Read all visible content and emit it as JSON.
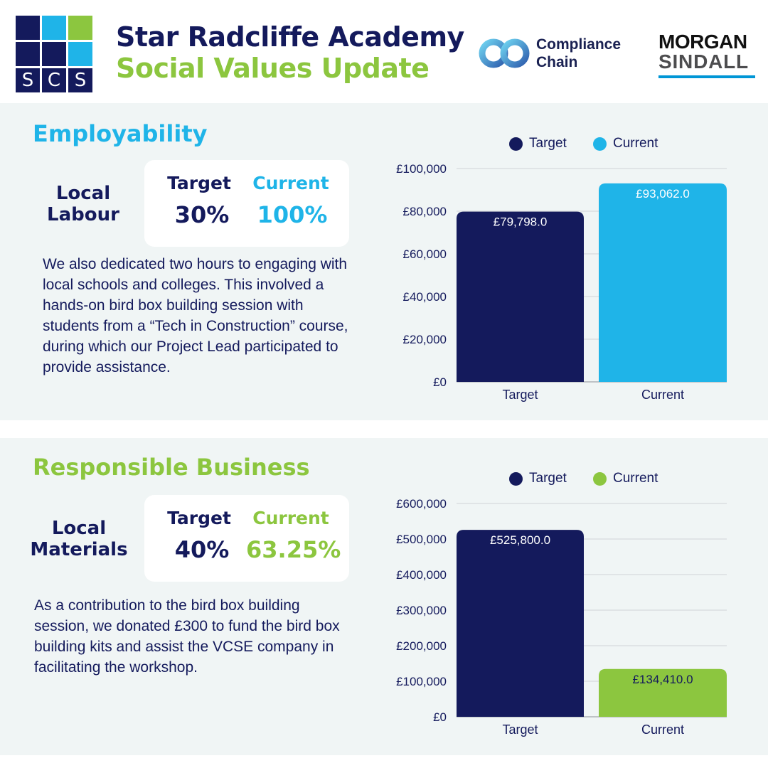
{
  "header": {
    "logo_letters": [
      "S",
      "C",
      "S"
    ],
    "title_line1": "Star Radcliffe Academy",
    "title_line2": "Social Values Update",
    "partner1_line1": "Compliance",
    "partner1_line2": "Chain",
    "partner2_line1": "MORGAN",
    "partner2_line2": "SINDALL"
  },
  "colors": {
    "navy": "#141a5c",
    "blue": "#1fb4e8",
    "green": "#8cc63f",
    "panel": "#f0f5f5"
  },
  "sections": [
    {
      "title": "Employability",
      "metric_label": "Local Labour",
      "target_label": "Target",
      "target_value": "30%",
      "current_label": "Current",
      "current_value": "100%",
      "body": "We also dedicated two hours to engaging with local schools and colleges. This involved a hands-on bird box building session with students from a “Tech in Construction” course, during which our Project Lead participated to provide assistance."
    },
    {
      "title": "Responsible Business",
      "metric_label": "Local Materials",
      "target_label": "Target",
      "target_value": "40%",
      "current_label": "Current",
      "current_value": "63.25%",
      "body": "As a contribution to the bird box building session, we donated £300 to fund the bird box building kits and assist the VCSE company in facilitating the workshop."
    }
  ],
  "chart_data": [
    {
      "type": "bar",
      "categories": [
        "Target",
        "Current"
      ],
      "values": [
        79798.0,
        93062.0
      ],
      "data_labels": [
        "£79,798.0",
        "£93,062.0"
      ],
      "bar_colors": [
        "#141a5c",
        "#1fb4e8"
      ],
      "legend": [
        "Target",
        "Current"
      ],
      "legend_placement": "top",
      "yticks": [
        "£0",
        "£20,000",
        "£40,000",
        "£60,000",
        "£80,000",
        "£100,000"
      ],
      "ylim": [
        0,
        100000
      ],
      "grid": true,
      "title": "",
      "xlabel": "",
      "ylabel": ""
    },
    {
      "type": "bar",
      "categories": [
        "Target",
        "Current"
      ],
      "values": [
        525800.0,
        134410.0
      ],
      "data_labels": [
        "£525,800.0",
        "£134,410.0"
      ],
      "bar_colors": [
        "#141a5c",
        "#8cc63f"
      ],
      "legend": [
        "Target",
        "Current"
      ],
      "legend_placement": "top",
      "yticks": [
        "£0",
        "£100,000",
        "£200,000",
        "£300,000",
        "£400,000",
        "£500,000",
        "£600,000"
      ],
      "ylim": [
        0,
        600000
      ],
      "grid": true,
      "title": "",
      "xlabel": "",
      "ylabel": ""
    }
  ]
}
